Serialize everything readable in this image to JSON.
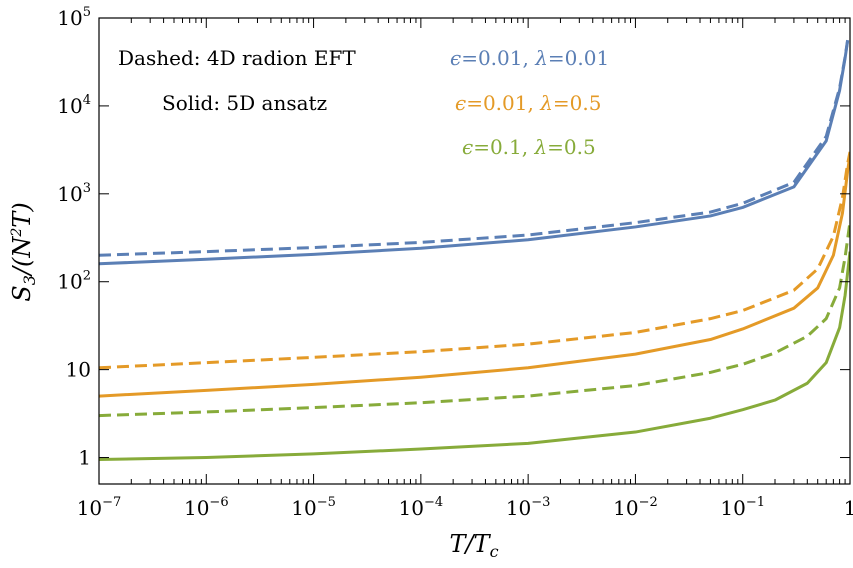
{
  "chart_data": {
    "type": "line",
    "xlabel": "T/T_c",
    "ylabel": "S_3/(N^2 T)",
    "xscale": "log",
    "yscale": "log",
    "xlim": [
      1e-07,
      1
    ],
    "ylim": [
      0.5,
      100000
    ],
    "grid": false,
    "x_ticks": [
      {
        "value": 1e-07,
        "base": "10",
        "exp": "−7"
      },
      {
        "value": 1e-06,
        "base": "10",
        "exp": "−6"
      },
      {
        "value": 1e-05,
        "base": "10",
        "exp": "−5"
      },
      {
        "value": 0.0001,
        "base": "10",
        "exp": "−4"
      },
      {
        "value": 0.001,
        "base": "10",
        "exp": "−3"
      },
      {
        "value": 0.01,
        "base": "10",
        "exp": "−2"
      },
      {
        "value": 0.1,
        "base": "10",
        "exp": "−1"
      },
      {
        "value": 1,
        "base": "1",
        "exp": ""
      }
    ],
    "y_ticks": [
      {
        "value": 1,
        "base": "1",
        "exp": ""
      },
      {
        "value": 10,
        "base": "10",
        "exp": ""
      },
      {
        "value": 100,
        "base": "10",
        "exp": "2"
      },
      {
        "value": 1000,
        "base": "10",
        "exp": "3"
      },
      {
        "value": 10000,
        "base": "10",
        "exp": "4"
      },
      {
        "value": 100000,
        "base": "10",
        "exp": "5"
      }
    ],
    "annotations": {
      "dashed": "Dashed: 4D radion EFT",
      "solid": "Solid: 5D ansatz"
    },
    "legend": {
      "placement": "top-right",
      "entries": [
        {
          "eps_label": "ϵ",
          "eps_value": "=0.01, ",
          "lam_label": "λ",
          "lam_value": "=0.01",
          "color": "#5b7fb5"
        },
        {
          "eps_label": "ϵ",
          "eps_value": "=0.01, ",
          "lam_label": "λ",
          "lam_value": "=0.5",
          "color": "#e49a27"
        },
        {
          "eps_label": "ϵ",
          "eps_value": "=0.1, ",
          "lam_label": "λ",
          "lam_value": "=0.5",
          "color": "#87ab3a"
        }
      ]
    },
    "series": [
      {
        "color": "#5b7fb5",
        "style": "solid",
        "x": [
          1e-07,
          1e-06,
          1e-05,
          0.0001,
          0.001,
          0.01,
          0.05,
          0.1,
          0.3,
          0.6,
          0.8,
          0.9,
          0.95
        ],
        "y": [
          160,
          180,
          205,
          240,
          300,
          420,
          560,
          700,
          1200,
          4000,
          15000,
          35000,
          55000
        ]
      },
      {
        "color": "#5b7fb5",
        "style": "dashed",
        "x": [
          1e-07,
          1e-06,
          1e-05,
          0.0001,
          0.001,
          0.01,
          0.05,
          0.1,
          0.3,
          0.6,
          0.8,
          0.9,
          0.95
        ],
        "y": [
          200,
          220,
          245,
          280,
          340,
          470,
          620,
          780,
          1350,
          4500,
          16000,
          36000,
          56000
        ]
      },
      {
        "color": "#e49a27",
        "style": "solid",
        "x": [
          1e-07,
          1e-06,
          1e-05,
          0.0001,
          0.001,
          0.01,
          0.05,
          0.1,
          0.3,
          0.5,
          0.7,
          0.85,
          0.95,
          1
        ],
        "y": [
          5,
          5.8,
          6.8,
          8.2,
          10.5,
          15,
          22,
          29,
          50,
          85,
          200,
          600,
          1800,
          2800
        ]
      },
      {
        "color": "#e49a27",
        "style": "dashed",
        "x": [
          1e-07,
          1e-06,
          1e-05,
          0.0001,
          0.001,
          0.01,
          0.05,
          0.1,
          0.3,
          0.5,
          0.7,
          0.85,
          0.95,
          1
        ],
        "y": [
          10.5,
          12,
          13.8,
          16,
          19.5,
          26.5,
          38,
          47,
          80,
          140,
          330,
          900,
          2200,
          3000
        ]
      },
      {
        "color": "#87ab3a",
        "style": "solid",
        "x": [
          1e-07,
          1e-06,
          1e-05,
          0.0001,
          0.001,
          0.01,
          0.05,
          0.1,
          0.2,
          0.4,
          0.6,
          0.8,
          0.9,
          1
        ],
        "y": [
          0.95,
          1.0,
          1.1,
          1.25,
          1.45,
          1.95,
          2.8,
          3.5,
          4.5,
          7,
          12,
          30,
          70,
          220
        ]
      },
      {
        "color": "#87ab3a",
        "style": "dashed",
        "x": [
          1e-07,
          1e-06,
          1e-05,
          0.0001,
          0.001,
          0.01,
          0.05,
          0.1,
          0.2,
          0.4,
          0.6,
          0.8,
          0.9,
          1
        ],
        "y": [
          3,
          3.3,
          3.7,
          4.2,
          5,
          6.6,
          9.3,
          11.5,
          15.5,
          24,
          38,
          85,
          190,
          480
        ]
      }
    ]
  }
}
